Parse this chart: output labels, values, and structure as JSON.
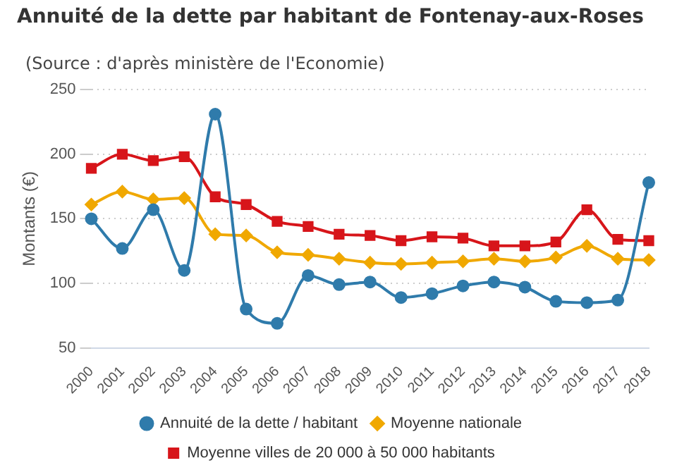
{
  "chart_data": {
    "type": "line",
    "title": "Annuité de la dette par habitant de Fontenay-aux-Roses",
    "subtitle": "(Source : d'après ministère de l'Economie)",
    "ylabel": "Montants (€)",
    "categories": [
      "2000",
      "2001",
      "2002",
      "2003",
      "2004",
      "2005",
      "2006",
      "2007",
      "2008",
      "2009",
      "2010",
      "2011",
      "2012",
      "2013",
      "2014",
      "2015",
      "2016",
      "2017",
      "2018"
    ],
    "series": [
      {
        "name": "Annuité de la dette / habitant",
        "color": "#2f7bab",
        "marker": "circle",
        "values": [
          150,
          127,
          157,
          110,
          231,
          80,
          69,
          106,
          99,
          101,
          89,
          92,
          98,
          101,
          97,
          86,
          85,
          87,
          178
        ]
      },
      {
        "name": "Moyenne nationale",
        "color": "#f0a800",
        "marker": "diamond",
        "values": [
          161,
          171,
          165,
          166,
          138,
          137,
          124,
          122,
          119,
          116,
          115,
          116,
          117,
          119,
          117,
          120,
          129,
          119,
          118
        ]
      },
      {
        "name": "Moyenne villes de 20 000 à 50 000 habitants",
        "color": "#d7151a",
        "marker": "square",
        "values": [
          189,
          200,
          195,
          198,
          167,
          161,
          148,
          144,
          138,
          137,
          133,
          136,
          135,
          129,
          129,
          132,
          157,
          134,
          133
        ]
      }
    ],
    "ylim": [
      50,
      250
    ],
    "yticks": [
      50,
      100,
      150,
      200,
      250
    ],
    "grid": "y",
    "legend": "bottom",
    "line_style": "solid"
  }
}
